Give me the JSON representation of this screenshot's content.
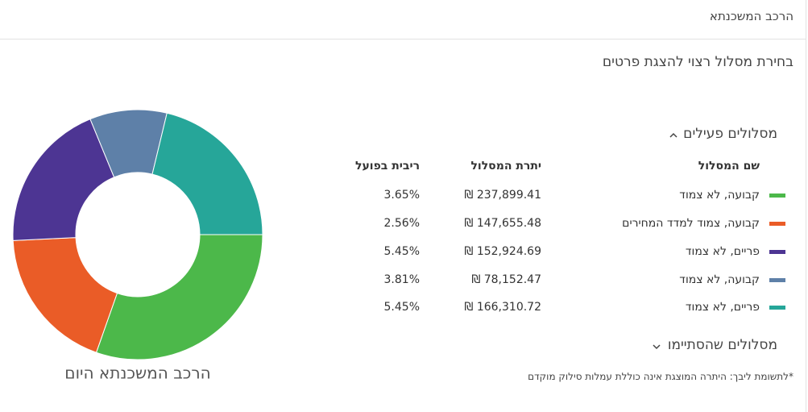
{
  "header": {
    "title": "הרכב המשכנתא"
  },
  "subtitle": "בחירת מסלול רצוי להצגת פרטים",
  "active_section": "מסלולים פעילים",
  "table": {
    "headers": [
      "שם המסלול",
      "יתרת המסלול",
      "ריבית בפועל"
    ],
    "rates": [
      "3.65%",
      "2.56%",
      "5.45%",
      "3.81%",
      "5.45%"
    ]
  },
  "ended_section": "מסלולים שהסתיימו",
  "footnote": "*לתשומת ליבך: היתרה המוצגת אינה כוללת עמלות סילוק מוקדם",
  "chart_data": {
    "type": "donut",
    "title": "הרכב המשכנתא היום",
    "categories": [
      "קבועה, לא צמוד",
      "קבועה, צמוד למדד המחירים",
      "פריים, לא צמוד",
      "קבועה, לא צמוד",
      "פריים, לא צמוד"
    ],
    "values": [
      237899.41,
      147655.48,
      152924.69,
      78152.47,
      166310.72
    ],
    "value_labels": [
      "₪ 237,899.41",
      "₪ 147,655.48",
      "₪ 152,924.69",
      "₪ 78,152.47",
      "₪ 166,310.72"
    ],
    "colors": [
      "#4cb84a",
      "#ea5c27",
      "#4d3593",
      "#5e80a8",
      "#26a699"
    ]
  }
}
